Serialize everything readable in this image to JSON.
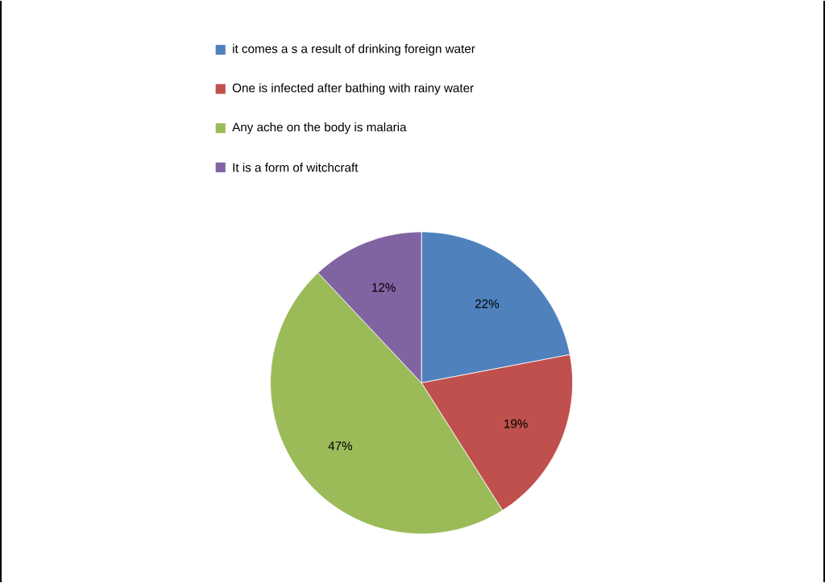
{
  "chart_data": {
    "type": "pie",
    "categories": [
      "it comes a s a result of drinking foreign water",
      "One is infected after bathing with rainy water",
      "Any ache on the body is malaria",
      "It is a form of witchcraft"
    ],
    "values": [
      22,
      19,
      47,
      12
    ],
    "colors": [
      "#4f81bd",
      "#c0504d",
      "#9bbb59",
      "#8064a2"
    ],
    "value_labels": [
      "22%",
      "19%",
      "47%",
      "12%"
    ],
    "legend": "top"
  }
}
